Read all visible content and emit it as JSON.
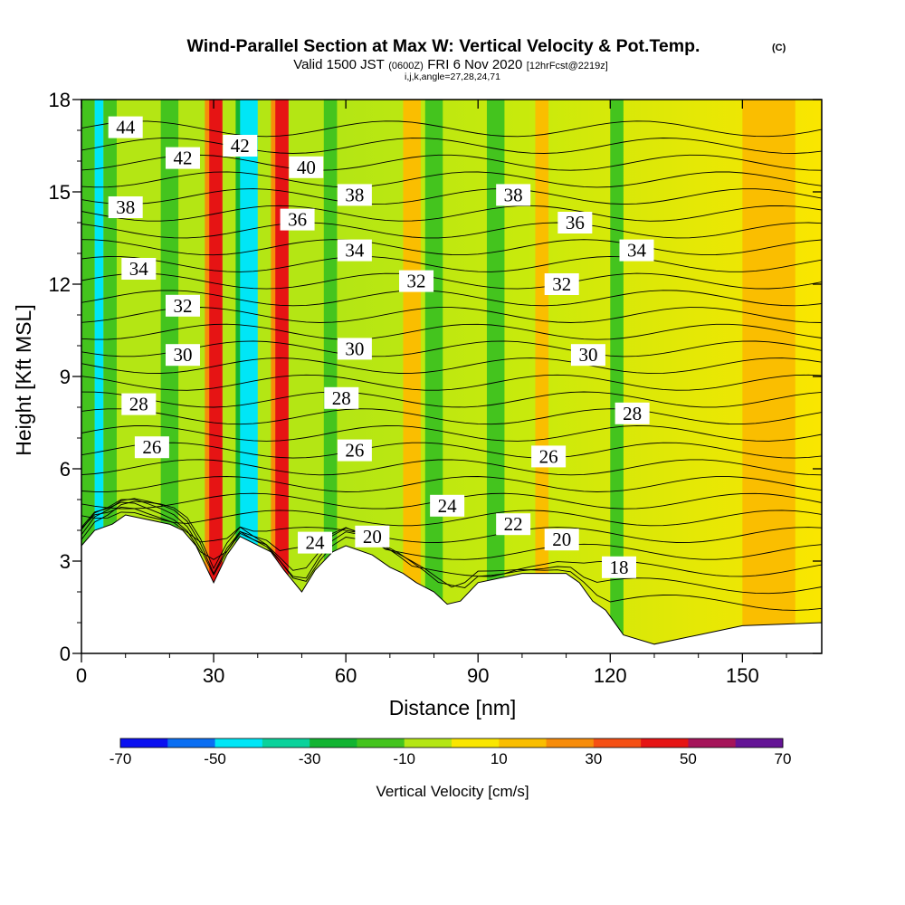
{
  "header": {
    "title": "Wind-Parallel Section at Max W: Vertical Velocity & Pot.Temp.",
    "copyright_mark": "(C)",
    "valid_prefix": "Valid 1500 JST",
    "valid_utc": "(0600Z)",
    "valid_date": "FRI 6 Nov 2020",
    "forecast_info": "[12hrFcst@2219z]",
    "grid_info": "i,j,k,angle=27,28,24,71"
  },
  "chart_data": {
    "type": "contour-section",
    "title": "Wind-Parallel Section at Max W: Vertical Velocity & Pot.Temp.",
    "xlabel": "Distance [nm]",
    "ylabel": "Height [Kft MSL]",
    "xlim": [
      0,
      168
    ],
    "ylim": [
      0,
      18
    ],
    "x_ticks": [
      0,
      30,
      60,
      90,
      120,
      150
    ],
    "y_ticks": [
      0,
      3,
      6,
      9,
      12,
      15,
      18
    ],
    "colorbar": {
      "label": "Vertical Velocity [cm/s]",
      "tick_labels": [
        -70,
        -50,
        -30,
        -10,
        10,
        30,
        50,
        70
      ],
      "boundaries": [
        -70,
        -60,
        -50,
        -40,
        -30,
        -20,
        -10,
        0,
        10,
        20,
        30,
        40,
        50,
        60,
        70
      ],
      "colors": [
        "#0a10f0",
        "#0a6ef2",
        "#00e6f6",
        "#0ad29b",
        "#12b432",
        "#44c41e",
        "#b4e614",
        "#fae600",
        "#fabe00",
        "#f78c0a",
        "#f55014",
        "#e61414",
        "#a5145a",
        "#641496"
      ]
    },
    "velocity_bands": [
      {
        "x": 0,
        "w": 3,
        "value": -20
      },
      {
        "x": 3,
        "w": 2,
        "value": -50
      },
      {
        "x": 5,
        "w": 3,
        "value": -20
      },
      {
        "x": 18,
        "w": 4,
        "value": -20
      },
      {
        "x": 28,
        "w": 2,
        "value": 20
      },
      {
        "x": 29,
        "w": 3,
        "value": 40
      },
      {
        "x": 35,
        "w": 3,
        "value": -30
      },
      {
        "x": 36,
        "w": 4,
        "value": -50
      },
      {
        "x": 43,
        "w": 3,
        "value": 20
      },
      {
        "x": 44,
        "w": 3,
        "value": 40
      },
      {
        "x": 55,
        "w": 3,
        "value": -20
      },
      {
        "x": 73,
        "w": 4,
        "value": 15
      },
      {
        "x": 78,
        "w": 4,
        "value": -20
      },
      {
        "x": 92,
        "w": 4,
        "value": -20
      },
      {
        "x": 103,
        "w": 3,
        "value": 15
      },
      {
        "x": 120,
        "w": 3,
        "value": -20
      },
      {
        "x": 150,
        "w": 12,
        "value": 15
      }
    ],
    "theta_labels": [
      {
        "x": 10,
        "y": 17.1,
        "label": "44"
      },
      {
        "x": 23,
        "y": 16.1,
        "label": "42"
      },
      {
        "x": 36,
        "y": 16.5,
        "label": "42"
      },
      {
        "x": 51,
        "y": 15.8,
        "label": "40"
      },
      {
        "x": 10,
        "y": 14.5,
        "label": "38"
      },
      {
        "x": 62,
        "y": 14.9,
        "label": "38"
      },
      {
        "x": 98,
        "y": 14.9,
        "label": "38"
      },
      {
        "x": 49,
        "y": 14.1,
        "label": "36"
      },
      {
        "x": 112,
        "y": 14.0,
        "label": "36"
      },
      {
        "x": 62,
        "y": 13.1,
        "label": "34"
      },
      {
        "x": 13,
        "y": 12.5,
        "label": "34"
      },
      {
        "x": 126,
        "y": 13.1,
        "label": "34"
      },
      {
        "x": 76,
        "y": 12.1,
        "label": "32"
      },
      {
        "x": 23,
        "y": 11.3,
        "label": "32"
      },
      {
        "x": 109,
        "y": 12.0,
        "label": "32"
      },
      {
        "x": 62,
        "y": 9.9,
        "label": "30"
      },
      {
        "x": 23,
        "y": 9.7,
        "label": "30"
      },
      {
        "x": 115,
        "y": 9.7,
        "label": "30"
      },
      {
        "x": 13,
        "y": 8.1,
        "label": "28"
      },
      {
        "x": 59,
        "y": 8.3,
        "label": "28"
      },
      {
        "x": 125,
        "y": 7.8,
        "label": "28"
      },
      {
        "x": 16,
        "y": 6.7,
        "label": "26"
      },
      {
        "x": 62,
        "y": 6.6,
        "label": "26"
      },
      {
        "x": 106,
        "y": 6.4,
        "label": "26"
      },
      {
        "x": 83,
        "y": 4.8,
        "label": "24"
      },
      {
        "x": 53,
        "y": 3.6,
        "label": "24"
      },
      {
        "x": 98,
        "y": 4.2,
        "label": "22"
      },
      {
        "x": 66,
        "y": 3.8,
        "label": "20"
      },
      {
        "x": 109,
        "y": 3.7,
        "label": "20"
      },
      {
        "x": 122,
        "y": 2.8,
        "label": "18"
      }
    ],
    "terrain_profile": [
      {
        "x": 0,
        "h": 3.5
      },
      {
        "x": 3,
        "h": 4.0
      },
      {
        "x": 7,
        "h": 4.2
      },
      {
        "x": 10,
        "h": 4.5
      },
      {
        "x": 20,
        "h": 4.2
      },
      {
        "x": 23,
        "h": 4.0
      },
      {
        "x": 26,
        "h": 3.5
      },
      {
        "x": 30,
        "h": 2.3
      },
      {
        "x": 33,
        "h": 3.2
      },
      {
        "x": 36,
        "h": 3.8
      },
      {
        "x": 43,
        "h": 3.3
      },
      {
        "x": 46,
        "h": 2.7
      },
      {
        "x": 50,
        "h": 2.0
      },
      {
        "x": 53,
        "h": 2.7
      },
      {
        "x": 57,
        "h": 3.3
      },
      {
        "x": 60,
        "h": 3.5
      },
      {
        "x": 66,
        "h": 3.2
      },
      {
        "x": 70,
        "h": 2.8
      },
      {
        "x": 73,
        "h": 2.6
      },
      {
        "x": 76,
        "h": 2.3
      },
      {
        "x": 80,
        "h": 2.0
      },
      {
        "x": 83,
        "h": 1.6
      },
      {
        "x": 86,
        "h": 1.7
      },
      {
        "x": 90,
        "h": 2.3
      },
      {
        "x": 100,
        "h": 2.6
      },
      {
        "x": 110,
        "h": 2.6
      },
      {
        "x": 113,
        "h": 2.3
      },
      {
        "x": 116,
        "h": 1.7
      },
      {
        "x": 119,
        "h": 1.4
      },
      {
        "x": 123,
        "h": 0.6
      },
      {
        "x": 130,
        "h": 0.3
      },
      {
        "x": 140,
        "h": 0.6
      },
      {
        "x": 150,
        "h": 0.9
      },
      {
        "x": 168,
        "h": 1.0
      }
    ]
  }
}
